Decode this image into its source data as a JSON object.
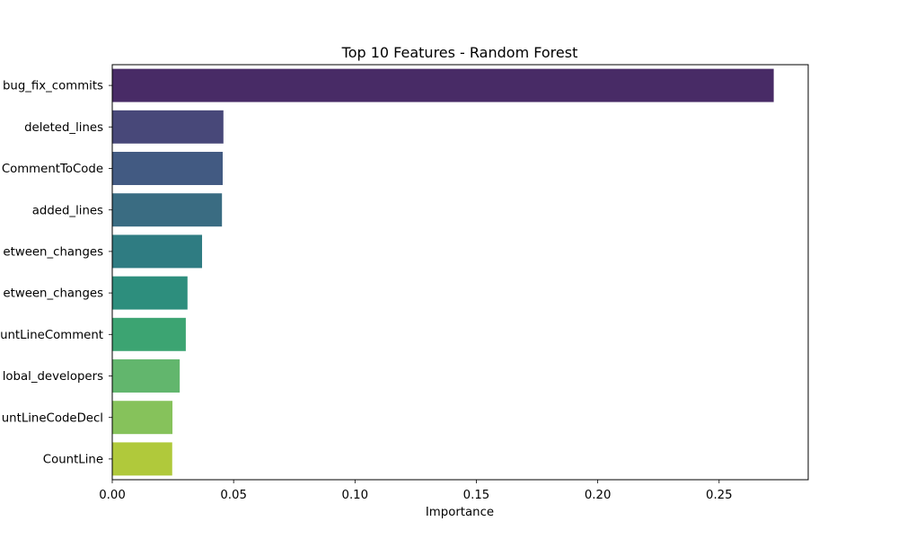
{
  "chart_data": {
    "type": "bar",
    "orientation": "horizontal",
    "title": "Top 10 Features - Random Forest",
    "xlabel": "Importance",
    "ylabel": "",
    "xlim": [
      0,
      0.2867
    ],
    "xticks": [
      0.0,
      0.05,
      0.1,
      0.15,
      0.2,
      0.25
    ],
    "xtick_labels": [
      "0.00",
      "0.05",
      "0.10",
      "0.15",
      "0.20",
      "0.25"
    ],
    "grid": false,
    "categories": [
      "bug_fix_commits",
      "deleted_lines",
      "CommentToCode",
      "added_lines",
      "etween_changes",
      "etween_changes",
      "untLineComment",
      "lobal_developers",
      "untLineCodeDecl",
      "CountLine"
    ],
    "values": [
      0.2725,
      0.0458,
      0.0455,
      0.0452,
      0.037,
      0.031,
      0.0303,
      0.0278,
      0.0248,
      0.0247
    ],
    "colors": [
      "#482b66",
      "#484879",
      "#425a82",
      "#3a6c82",
      "#2f7c82",
      "#2d8e7d",
      "#3ca472",
      "#62b66d",
      "#86c25b",
      "#b0c93b"
    ]
  }
}
